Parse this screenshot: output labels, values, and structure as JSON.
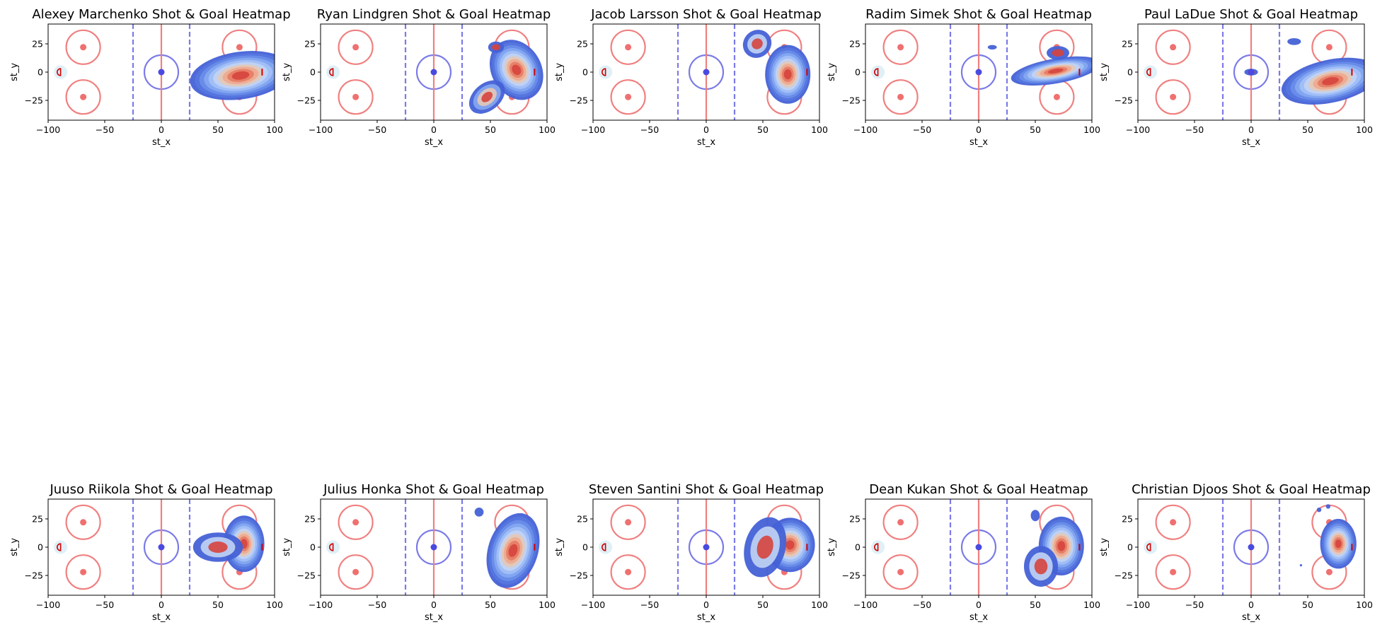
{
  "figure": {
    "x_label": "st_x",
    "y_label": "st_y"
  },
  "colors": {
    "red_line": "#f08080",
    "blue_line": "#7b7be8",
    "center_dot": "#4a4ae0",
    "faceoff_dot": "#f07070",
    "crease": "#dff0f7",
    "net": "#d00000",
    "kde_levels": [
      "#4461d6",
      "#5677e0",
      "#6c8fea",
      "#86a9f2",
      "#a4c1f7",
      "#c2d4f4",
      "#e4c8b6",
      "#f0a88e",
      "#e57b65",
      "#d6443d"
    ]
  },
  "chart_data": [
    {
      "type": "heatmap",
      "title": "Alexey Marchenko Shot & Goal Heatmap",
      "xlim": [
        -100,
        100
      ],
      "ylim": [
        -42.5,
        42.5
      ],
      "xticks": [
        -100,
        -50,
        0,
        50,
        100
      ],
      "yticks": [
        -25,
        0,
        25
      ],
      "xlabel": "st_x",
      "ylabel": "st_y",
      "density_blobs": [
        {
          "cx": 70,
          "cy": -3,
          "rx": 45,
          "ry": 21,
          "rot": -8,
          "levels": 10
        }
      ]
    },
    {
      "type": "heatmap",
      "title": "Ryan Lindgren Shot & Goal Heatmap",
      "xlim": [
        -100,
        100
      ],
      "ylim": [
        -42.5,
        42.5
      ],
      "xticks": [
        -100,
        -50,
        0,
        50,
        100
      ],
      "yticks": [
        -25,
        0,
        25
      ],
      "xlabel": "st_x",
      "ylabel": "st_y",
      "density_blobs": [
        {
          "cx": 73,
          "cy": 2,
          "rx": 22,
          "ry": 28,
          "rot": -30,
          "levels": 10
        },
        {
          "cx": 47,
          "cy": -22,
          "rx": 18,
          "ry": 12,
          "rot": -40,
          "levels": 4
        },
        {
          "cx": 55,
          "cy": 22,
          "rx": 7,
          "ry": 5,
          "rot": 0,
          "levels": 2
        }
      ]
    },
    {
      "type": "heatmap",
      "title": "Jacob Larsson Shot & Goal Heatmap",
      "xlim": [
        -100,
        100
      ],
      "ylim": [
        -42.5,
        42.5
      ],
      "xticks": [
        -100,
        -50,
        0,
        50,
        100
      ],
      "yticks": [
        -25,
        0,
        25
      ],
      "xlabel": "st_x",
      "ylabel": "st_y",
      "density_blobs": [
        {
          "cx": 72,
          "cy": -2,
          "rx": 20,
          "ry": 26,
          "rot": 0,
          "levels": 10
        },
        {
          "cx": 45,
          "cy": 25,
          "rx": 13,
          "ry": 12,
          "rot": -40,
          "levels": 3
        }
      ]
    },
    {
      "type": "heatmap",
      "title": "Radim Simek Shot & Goal Heatmap",
      "xlim": [
        -100,
        100
      ],
      "ylim": [
        -42.5,
        42.5
      ],
      "xticks": [
        -100,
        -50,
        0,
        50,
        100
      ],
      "yticks": [
        -25,
        0,
        25
      ],
      "xlabel": "st_x",
      "ylabel": "st_y",
      "density_blobs": [
        {
          "cx": 68,
          "cy": 1,
          "rx": 40,
          "ry": 11,
          "rot": -10,
          "levels": 10
        },
        {
          "cx": 70,
          "cy": 17,
          "rx": 10,
          "ry": 6,
          "rot": 0,
          "levels": 2
        },
        {
          "cx": 12,
          "cy": 22,
          "rx": 4,
          "ry": 2,
          "rot": 0,
          "levels": 1
        }
      ]
    },
    {
      "type": "heatmap",
      "title": "Paul LaDue Shot & Goal Heatmap",
      "xlim": [
        -100,
        100
      ],
      "ylim": [
        -42.5,
        42.5
      ],
      "xticks": [
        -100,
        -50,
        0,
        50,
        100
      ],
      "yticks": [
        -25,
        0,
        25
      ],
      "xlabel": "st_x",
      "ylabel": "st_y",
      "density_blobs": [
        {
          "cx": 70,
          "cy": -8,
          "rx": 44,
          "ry": 19,
          "rot": -12,
          "levels": 10
        },
        {
          "cx": 0,
          "cy": 0,
          "rx": 6,
          "ry": 3,
          "rot": 0,
          "levels": 2
        },
        {
          "cx": 38,
          "cy": 27,
          "rx": 6,
          "ry": 3,
          "rot": 0,
          "levels": 1
        }
      ]
    },
    {
      "type": "heatmap",
      "title": "Juuso Riikola Shot & Goal Heatmap",
      "xlim": [
        -100,
        100
      ],
      "ylim": [
        -42.5,
        42.5
      ],
      "xticks": [
        -100,
        -50,
        0,
        50,
        100
      ],
      "yticks": [
        -25,
        0,
        25
      ],
      "xlabel": "st_x",
      "ylabel": "st_y",
      "density_blobs": [
        {
          "cx": 73,
          "cy": 3,
          "rx": 18,
          "ry": 25,
          "rot": 0,
          "levels": 10
        },
        {
          "cx": 50,
          "cy": 0,
          "rx": 22,
          "ry": 13,
          "rot": 0,
          "levels": 3
        }
      ]
    },
    {
      "type": "heatmap",
      "title": "Julius Honka Shot & Goal Heatmap",
      "xlim": [
        -100,
        100
      ],
      "ylim": [
        -42.5,
        42.5
      ],
      "xticks": [
        -100,
        -50,
        0,
        50,
        100
      ],
      "yticks": [
        -25,
        0,
        25
      ],
      "xlabel": "st_x",
      "ylabel": "st_y",
      "density_blobs": [
        {
          "cx": 70,
          "cy": -3,
          "rx": 22,
          "ry": 34,
          "rot": 18,
          "levels": 10
        },
        {
          "cx": 40,
          "cy": 31,
          "rx": 4,
          "ry": 4,
          "rot": 0,
          "levels": 1
        }
      ]
    },
    {
      "type": "heatmap",
      "title": "Steven Santini Shot & Goal Heatmap",
      "xlim": [
        -100,
        100
      ],
      "ylim": [
        -42.5,
        42.5
      ],
      "xticks": [
        -100,
        -50,
        0,
        50,
        100
      ],
      "yticks": [
        -25,
        0,
        25
      ],
      "xlabel": "st_x",
      "ylabel": "st_y",
      "density_blobs": [
        {
          "cx": 74,
          "cy": 2,
          "rx": 22,
          "ry": 24,
          "rot": 0,
          "levels": 10
        },
        {
          "cx": 52,
          "cy": 0,
          "rx": 18,
          "ry": 27,
          "rot": 15,
          "levels": 3
        }
      ]
    },
    {
      "type": "heatmap",
      "title": "Dean Kukan Shot & Goal Heatmap",
      "xlim": [
        -100,
        100
      ],
      "ylim": [
        -42.5,
        42.5
      ],
      "xticks": [
        -100,
        -50,
        0,
        50,
        100
      ],
      "yticks": [
        -25,
        0,
        25
      ],
      "xlabel": "st_x",
      "ylabel": "st_y",
      "density_blobs": [
        {
          "cx": 73,
          "cy": 1,
          "rx": 20,
          "ry": 26,
          "rot": 0,
          "levels": 10
        },
        {
          "cx": 55,
          "cy": -17,
          "rx": 15,
          "ry": 18,
          "rot": 0,
          "levels": 3
        },
        {
          "cx": 50,
          "cy": 28,
          "rx": 4,
          "ry": 5,
          "rot": 0,
          "levels": 1
        }
      ]
    },
    {
      "type": "heatmap",
      "title": "Christian Djoos Shot & Goal Heatmap",
      "xlim": [
        -100,
        100
      ],
      "ylim": [
        -42.5,
        42.5
      ],
      "xticks": [
        -100,
        -50,
        0,
        50,
        100
      ],
      "yticks": [
        -25,
        0,
        25
      ],
      "xlabel": "st_x",
      "ylabel": "st_y",
      "density_blobs": [
        {
          "cx": 77,
          "cy": 3,
          "rx": 16,
          "ry": 22,
          "rot": 0,
          "levels": 10
        },
        {
          "cx": 60,
          "cy": 33,
          "rx": 2,
          "ry": 2,
          "rot": 0,
          "levels": 1
        },
        {
          "cx": 68,
          "cy": 36,
          "rx": 2,
          "ry": 2,
          "rot": 0,
          "levels": 1
        },
        {
          "cx": 44,
          "cy": -16,
          "rx": 1,
          "ry": 1,
          "rot": 0,
          "levels": 1
        }
      ]
    }
  ]
}
